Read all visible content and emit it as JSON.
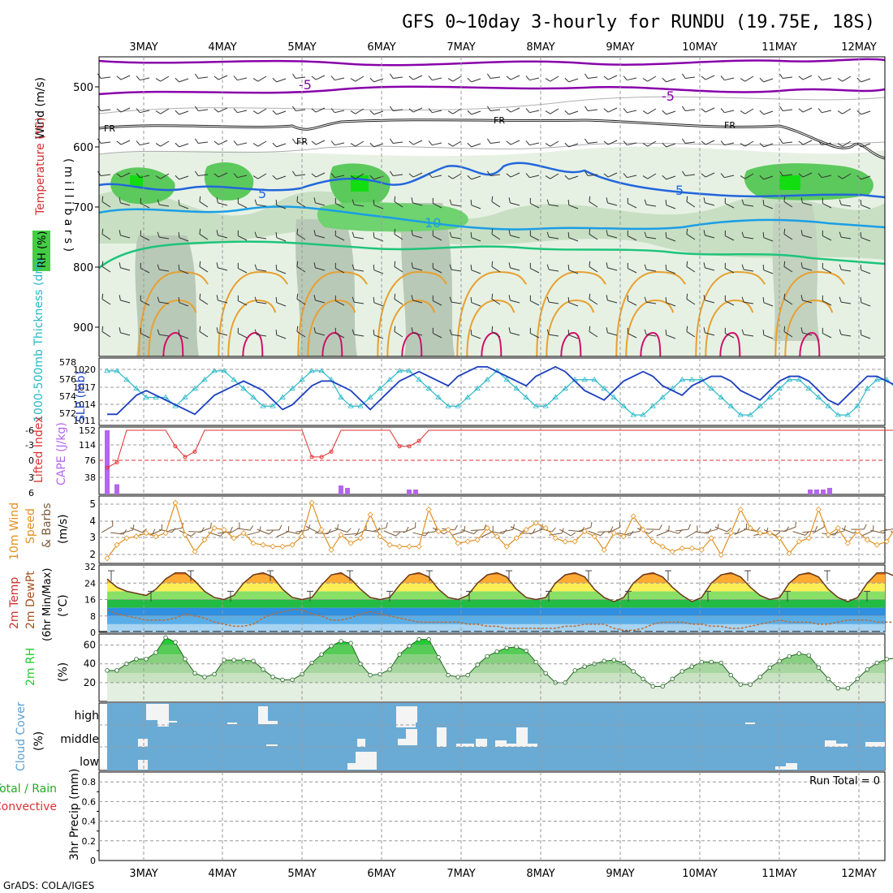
{
  "title": "GFS 0~10day 3-hourly for RUNDU (19.75E, 18S)",
  "credit": "GrADS: COLA/IGES",
  "days": [
    "3MAY",
    "4MAY",
    "5MAY",
    "6MAY",
    "7MAY",
    "8MAY",
    "9MAY",
    "10MAY",
    "11MAY",
    "12MAY"
  ],
  "colors": {
    "rh_light": "#dcebd9",
    "rh_mid": "#b7d6b1",
    "rh_gray": "#a9bfa8",
    "rh_green": "#55cc55",
    "rh_bright": "#11dd11",
    "iso_purple": "#8800aa",
    "iso_blue": "#2266dd",
    "iso_lightblue": "#1a9ee6",
    "iso_green": "#1dc47a",
    "iso_orange": "#e8a030",
    "iso_magenta": "#d0106a",
    "slp": "#1c3fc0",
    "thick": "#28b8c8",
    "cape": "#b566ee",
    "li": "#e03030",
    "wind": "#e09020",
    "barb": "#7a5a3a",
    "cloud_bg": "#6aabd6",
    "rh2m": "#22cc33"
  },
  "upper_panel": {
    "ylabel_wind": "Wind (m/s)",
    "ylabel_temp": "Temperature (°C)",
    "ylabel_mb": "( m i l l i b a r s )",
    "legend_rh": "RH (%)",
    "pressure_ticks": [
      "500",
      "600",
      "700",
      "800",
      "900"
    ],
    "labels": {
      "m5a": "-5",
      "m5b": "-5",
      "fr1": "FR",
      "fr2": "FR",
      "fr3": "FR",
      "fr4": "FR",
      "five1": "5",
      "five2": "5",
      "ten1": "10",
      "ten2": "10"
    }
  },
  "slp_panel": {
    "ylabel_left": "1000-500mb Thickness (dm)",
    "ylabel_right": "SLP (mb)",
    "thick_ticks": [
      "578",
      "576",
      "574",
      "572"
    ],
    "slp_ticks": [
      "1020",
      "1017",
      "1014",
      "1011"
    ]
  },
  "cape_panel": {
    "ylabel_li": "Lifted Index",
    "ylabel_cape": "CAPE (J/kg)",
    "li_ticks": [
      "-6",
      "-3",
      "0",
      "3",
      "6"
    ],
    "cape_ticks": [
      "152",
      "114",
      "76",
      "38"
    ]
  },
  "wind_panel": {
    "ylabel_a": "10m Wind",
    "ylabel_b": "Speed",
    "ylabel_c": "& Barbs",
    "ylabel_unit": "(m/s)",
    "ticks": [
      "5",
      "4",
      "3",
      "2"
    ]
  },
  "temp_panel": {
    "ylabel_a": "2m Temp",
    "ylabel_b": "2m DewPt",
    "ylabel_c": "(6hr Min/Max)",
    "ylabel_unit": "(°C)",
    "ticks": [
      "32",
      "24",
      "16",
      "8",
      "0"
    ]
  },
  "rh_panel": {
    "ylabel": "2m RH",
    "unit": "(%)",
    "ticks": [
      "60",
      "40",
      "20"
    ]
  },
  "cloud_panel": {
    "ylabel": "Cloud Cover",
    "unit": "(%)",
    "levels": [
      "high",
      "middle",
      "low"
    ]
  },
  "precip_panel": {
    "ylabel_a": "Total / Rain",
    "ylabel_b": "Convective",
    "ylabel_c": "3hr Precip (mm)",
    "run_total": "Run Total = 0",
    "ticks": [
      "0.8",
      "0.6",
      "0.4",
      "0.2",
      "0"
    ]
  },
  "chart_data": [
    {
      "type": "line",
      "title": "1000-500mb Thickness / SLP",
      "series": [
        {
          "name": "SLP (mb)",
          "values": [
            1011,
            1011,
            1013,
            1015,
            1016,
            1015,
            1014,
            1013,
            1012,
            1011,
            1013,
            1015,
            1016,
            1017,
            1018,
            1017,
            1016,
            1014,
            1012,
            1013,
            1015,
            1017,
            1018,
            1018,
            1017,
            1016,
            1014,
            1012,
            1014,
            1016,
            1018,
            1019,
            1020,
            1019,
            1018,
            1017,
            1019,
            1020,
            1021,
            1021,
            1020,
            1019,
            1018,
            1017,
            1019,
            1020,
            1021,
            1020,
            1018,
            1016,
            1015,
            1014,
            1016,
            1018,
            1019,
            1020,
            1019,
            1017,
            1016,
            1015,
            1017,
            1018,
            1019,
            1019,
            1018,
            1016,
            1015,
            1014,
            1016,
            1018,
            1019,
            1019,
            1018,
            1016,
            1014,
            1013,
            1015,
            1017,
            1019,
            1019,
            1018,
            1017,
            1015,
            1014,
            1016,
            1018,
            1019,
            1020,
            1020,
            1021
          ]
        },
        {
          "name": "1000-500mb Thickness (dm)",
          "values": [
            577,
            577,
            576,
            575,
            574,
            574,
            574,
            573,
            574,
            575,
            576,
            577,
            577,
            576,
            575,
            574,
            573,
            573,
            574,
            575,
            576,
            577,
            577,
            576,
            574,
            573,
            573,
            574,
            575,
            576,
            577,
            577,
            576,
            575,
            574,
            573,
            573,
            574,
            575,
            576,
            577,
            576,
            575,
            574,
            573,
            573,
            574,
            575,
            576,
            576,
            576,
            575,
            574,
            573,
            572,
            572,
            573,
            574,
            575,
            576,
            576,
            576,
            575,
            574,
            573,
            572,
            572,
            573,
            574,
            575,
            576,
            576,
            575,
            574,
            573,
            572,
            572,
            573,
            575,
            576,
            576,
            575,
            574,
            573,
            572,
            572,
            572,
            573,
            573,
            572
          ]
        }
      ],
      "ylim_slp": [
        1010,
        1022
      ],
      "ylim_thick": [
        571,
        578
      ]
    },
    {
      "type": "bar",
      "title": "Lifted Index / CAPE",
      "series": [
        {
          "name": "CAPE (J/kg)",
          "values": [
            152,
            24,
            0,
            0,
            0,
            0,
            0,
            0,
            0,
            0,
            0,
            0,
            0,
            0,
            0,
            0,
            0,
            0,
            0,
            0,
            0,
            0,
            0,
            0,
            0,
            0,
            0,
            0,
            0,
            0,
            0,
            0,
            0,
            0,
            0,
            0,
            0,
            0,
            0,
            0,
            0,
            0,
            0,
            0,
            0,
            0,
            0,
            0,
            0,
            0,
            0,
            0,
            0,
            0,
            0,
            0,
            0,
            0,
            0,
            0,
            0,
            0,
            0,
            0,
            0,
            0,
            0,
            0,
            0,
            0,
            0,
            0,
            0,
            0,
            0,
            0,
            0,
            0,
            0,
            0,
            0,
            0,
            0,
            0,
            0,
            0,
            0,
            0,
            0,
            0
          ]
        },
        {
          "name": "Lifted Index",
          "values": [
            -1,
            0,
            6,
            6,
            6,
            6,
            6,
            3,
            1,
            2,
            6,
            6,
            6,
            6,
            6,
            6,
            6,
            6,
            6,
            6,
            6,
            1,
            1,
            2,
            6,
            6,
            6,
            6,
            6,
            6,
            3,
            3,
            4,
            6,
            6,
            6,
            6,
            6,
            6,
            6,
            6,
            6,
            6,
            6,
            6,
            6,
            6,
            6,
            6,
            6,
            6,
            6,
            6,
            6,
            6,
            6,
            6,
            6,
            6,
            6,
            6,
            6,
            6,
            6,
            6,
            6,
            6,
            6,
            6,
            6,
            6,
            6,
            6,
            6,
            6,
            6,
            6,
            6,
            6,
            6,
            6,
            6,
            6,
            6,
            6,
            4,
            4,
            5,
            6,
            6
          ]
        }
      ],
      "li_range": [
        -6,
        6
      ],
      "cape_range": [
        0,
        152
      ]
    },
    {
      "type": "line",
      "title": "10m Wind Speed",
      "series": [
        {
          "name": "Wind Speed (m/s)",
          "values": [
            1.8,
            2.6,
            3.0,
            3.1,
            3.3,
            3.1,
            3.3,
            5.1,
            3.2,
            2.2,
            2.9,
            3.6,
            3.5,
            3.0,
            3.3,
            2.7,
            2.6,
            2.5,
            2.5,
            2.6,
            3.1,
            5.1,
            3.5,
            2.3,
            3.2,
            2.7,
            3.0,
            4.4,
            3.1,
            2.6,
            2.5,
            2.5,
            2.5,
            4.7,
            3.4,
            3.5,
            2.7,
            2.8,
            2.9,
            3.6,
            3.1,
            2.5,
            3.0,
            3.5,
            3.9,
            3.6,
            3.0,
            2.8,
            2.8,
            3.4,
            3.1,
            2.3,
            3.3,
            3.1,
            4.3,
            3.5,
            2.8,
            2.5,
            2.2,
            2.4,
            2.4,
            2.3,
            3.0,
            2.0,
            3.3,
            4.7,
            3.6,
            3.3,
            3.3,
            3.0,
            2.1,
            2.8,
            3.0,
            4.7,
            3.2,
            3.6,
            2.7,
            3.4,
            2.9,
            2.6,
            2.8,
            3.7,
            3.2,
            2.2,
            2.4,
            3.4,
            3.4,
            3.1,
            3.2,
            2.3
          ]
        }
      ],
      "ylim": [
        1.5,
        5.5
      ]
    },
    {
      "type": "area",
      "title": "2m Temp / 2m DewPt",
      "series": [
        {
          "name": "2m Temp (°C)",
          "values": [
            26,
            22,
            20,
            19,
            18,
            21,
            26,
            29,
            29,
            25,
            20,
            17,
            16,
            18,
            24,
            28,
            29,
            27,
            21,
            17,
            16,
            17,
            23,
            28,
            29,
            26,
            21,
            17,
            16,
            17,
            23,
            28,
            29,
            27,
            21,
            17,
            16,
            18,
            24,
            28,
            29,
            27,
            21,
            17,
            16,
            17,
            24,
            28,
            29,
            27,
            21,
            17,
            15,
            17,
            24,
            28,
            29,
            27,
            22,
            18,
            15,
            17,
            24,
            28,
            29,
            27,
            22,
            18,
            16,
            17,
            24,
            28,
            29,
            27,
            21,
            17,
            15,
            17,
            24,
            29,
            29,
            27,
            22,
            18,
            16,
            17,
            24,
            29,
            29,
            26
          ]
        },
        {
          "name": "2m DewPt (°C)",
          "values": [
            11,
            9,
            8,
            7,
            6,
            6,
            6,
            7,
            9,
            8,
            7,
            5,
            4,
            3,
            3,
            4,
            7,
            9,
            10,
            11,
            11,
            9,
            8,
            6,
            6,
            7,
            9,
            10,
            9,
            8,
            7,
            6,
            5,
            5,
            5,
            5,
            5,
            4,
            4,
            3,
            3,
            2,
            2,
            2,
            2,
            2,
            2,
            3,
            3,
            4,
            4,
            4,
            2,
            1,
            1,
            2,
            4,
            5,
            5,
            5,
            4,
            4,
            3,
            3,
            2,
            2,
            3,
            4,
            5,
            6,
            5,
            5,
            5,
            4,
            4,
            5,
            6,
            6,
            6,
            5,
            5,
            5,
            5,
            4,
            4,
            4,
            4,
            5,
            5,
            5
          ]
        }
      ],
      "ylim": [
        0,
        32
      ]
    },
    {
      "type": "area",
      "title": "2m RH",
      "series": [
        {
          "name": "2m RH (%)",
          "values": [
            33,
            33,
            40,
            45,
            45,
            52,
            68,
            63,
            45,
            30,
            26,
            29,
            44,
            44,
            44,
            43,
            34,
            26,
            23,
            23,
            29,
            41,
            50,
            59,
            64,
            62,
            40,
            28,
            29,
            34,
            50,
            59,
            66,
            66,
            47,
            28,
            26,
            28,
            39,
            48,
            53,
            57,
            58,
            54,
            42,
            30,
            20,
            20,
            33,
            37,
            40,
            43,
            44,
            41,
            32,
            24,
            16,
            16,
            24,
            32,
            37,
            42,
            42,
            41,
            28,
            18,
            18,
            26,
            36,
            43,
            48,
            51,
            49,
            36,
            24,
            14,
            14,
            24,
            34,
            41,
            45,
            46,
            44,
            36,
            27,
            23,
            27,
            37,
            43,
            48
          ]
        }
      ],
      "ylim": [
        0,
        70
      ]
    },
    {
      "type": "bar",
      "title": "3hr Precip",
      "series": [
        {
          "name": "3hr Precip (mm)",
          "values": []
        }
      ],
      "ylim": [
        0,
        0.9
      ]
    }
  ]
}
